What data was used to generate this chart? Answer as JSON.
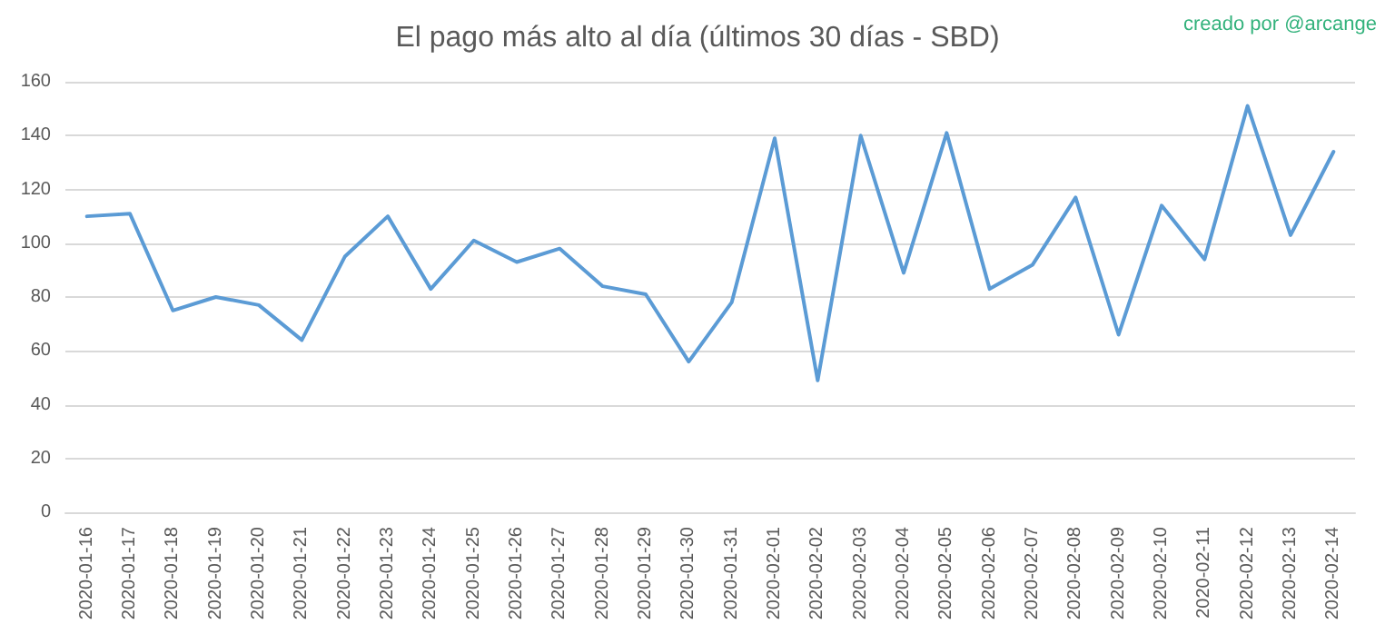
{
  "chart_data": {
    "type": "line",
    "title": "El pago más alto al día (últimos 30 días - SBD)",
    "annotations": [
      "creado por @arcange"
    ],
    "categories": [
      "2020-01-16",
      "2020-01-17",
      "2020-01-18",
      "2020-01-19",
      "2020-01-20",
      "2020-01-21",
      "2020-01-22",
      "2020-01-23",
      "2020-01-24",
      "2020-01-25",
      "2020-01-26",
      "2020-01-27",
      "2020-01-28",
      "2020-01-29",
      "2020-01-30",
      "2020-01-31",
      "2020-02-01",
      "2020-02-02",
      "2020-02-03",
      "2020-02-04",
      "2020-02-05",
      "2020-02-06",
      "2020-02-07",
      "2020-02-08",
      "2020-02-09",
      "2020-02-10",
      "2020-02-11",
      "2020-02-12",
      "2020-02-13",
      "2020-02-14"
    ],
    "series": [
      {
        "color": "#5b9bd5",
        "values": [
          110,
          111,
          75,
          80,
          77,
          64,
          95,
          110,
          83,
          101,
          93,
          98,
          84,
          81,
          56,
          78,
          139,
          49,
          140,
          89,
          141,
          83,
          92,
          117,
          66,
          114,
          94,
          151,
          103,
          134
        ]
      }
    ],
    "ylim": [
      0,
      160
    ],
    "yticks": [
      0,
      20,
      40,
      60,
      80,
      100,
      120,
      140,
      160
    ],
    "grid": "y",
    "marker": "none",
    "line_style": "solid"
  }
}
